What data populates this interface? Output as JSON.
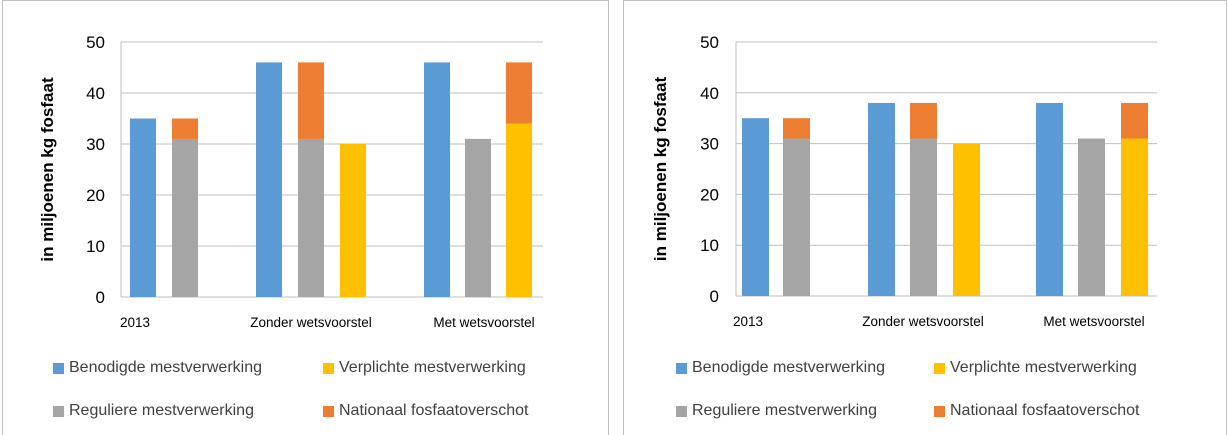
{
  "colors": {
    "benodigd": "#5b9bd5",
    "verplicht": "#ffc000",
    "regulier": "#a5a5a5",
    "nationaal": "#ed7d31",
    "grid": "#bfbfbf"
  },
  "chart_data": [
    {
      "type": "bar",
      "stacked_partially": true,
      "ylabel": "in miljoenen kg fosfaat",
      "ylim": [
        0,
        50
      ],
      "yticks": [
        0,
        10,
        20,
        30,
        40,
        50
      ],
      "grid": true,
      "legend_position": "bottom",
      "categories": [
        "2013",
        "Zonder wetsvoorstel",
        "Met wetsvoorstel"
      ],
      "series": [
        {
          "name": "Benodigde mestverwerking",
          "key": "benodigd",
          "values": [
            35,
            46,
            46
          ]
        },
        {
          "name": "Reguliere mestverwerking",
          "key": "regulier",
          "values": [
            31,
            31,
            31
          ]
        },
        {
          "name": "Nationaal fosfaatoverschot",
          "key": "nationaal",
          "stack_on": "regulier_or_verplicht",
          "values": [
            4,
            15,
            12
          ]
        },
        {
          "name": "Verplichte mestverwerking",
          "key": "verplicht",
          "values": [
            null,
            30,
            34
          ]
        }
      ],
      "legend": [
        "Benodigde mestverwerking",
        "Verplichte mestverwerking",
        "Reguliere mestverwerking",
        "Nationaal fosfaatoverschot"
      ]
    },
    {
      "type": "bar",
      "stacked_partially": true,
      "ylabel": "in miljoenen kg fosfaat",
      "ylim": [
        0,
        50
      ],
      "yticks": [
        0,
        10,
        20,
        30,
        40,
        50
      ],
      "grid": true,
      "legend_position": "bottom",
      "categories": [
        "2013",
        "Zonder wetsvoorstel",
        "Met wetsvoorstel"
      ],
      "series": [
        {
          "name": "Benodigde mestverwerking",
          "key": "benodigd",
          "values": [
            35,
            38,
            38
          ]
        },
        {
          "name": "Reguliere mestverwerking",
          "key": "regulier",
          "values": [
            31,
            31,
            31
          ]
        },
        {
          "name": "Nationaal fosfaatoverschot",
          "key": "nationaal",
          "stack_on": "regulier_or_verplicht",
          "values": [
            4,
            7,
            7
          ]
        },
        {
          "name": "Verplichte mestverwerking",
          "key": "verplicht",
          "values": [
            null,
            30,
            31
          ]
        }
      ],
      "legend": [
        "Benodigde mestverwerking",
        "Verplichte mestverwerking",
        "Reguliere mestverwerking",
        "Nationaal fosfaatoverschot"
      ]
    }
  ]
}
